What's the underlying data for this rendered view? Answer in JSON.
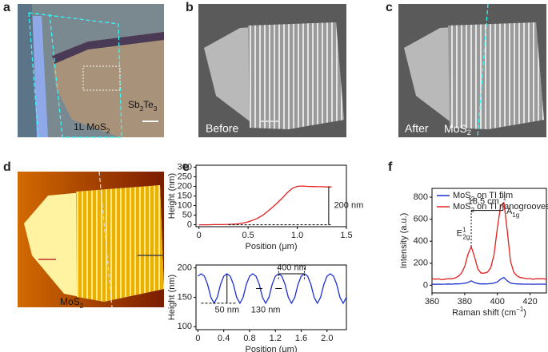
{
  "panel_labels": [
    "a",
    "b",
    "c",
    "d",
    "e",
    "f"
  ],
  "image_labels": {
    "a_material": [
      "Sb",
      "2",
      "Te",
      "3"
    ],
    "a_layer": [
      "1L MoS",
      "2"
    ],
    "b_state": "Before",
    "c_state": "After",
    "c_material": [
      "MoS",
      "2"
    ],
    "d_material": [
      "MoS",
      "2"
    ]
  },
  "chart_data": [
    {
      "type": "line",
      "xlabel": "Position (μm)",
      "ylabel": "Height (nm)",
      "xlim": [
        -0.03,
        1.5
      ],
      "ylim": [
        -10,
        310
      ],
      "xticks": [
        0,
        0.5,
        {
          "value": 1,
          "label": "1.0"
        },
        1.5
      ],
      "yticks": [
        0,
        50,
        100,
        150,
        200,
        250,
        300
      ],
      "series": [
        {
          "color": "#e0201f",
          "x": [
            0,
            0.05,
            0.1,
            0.15,
            0.2,
            0.25,
            0.3,
            0.35,
            0.4,
            0.45,
            0.5,
            0.55,
            0.6,
            0.65,
            0.7,
            0.75,
            0.8,
            0.85,
            0.9,
            0.95,
            1.0,
            1.05,
            1.1,
            1.15,
            1.2,
            1.25,
            1.3,
            1.35
          ],
          "values": [
            0,
            0,
            0,
            1,
            1,
            1,
            2,
            3,
            5,
            9,
            15,
            24,
            35,
            50,
            70,
            92,
            115,
            140,
            168,
            190,
            200,
            202,
            200,
            199,
            198,
            198,
            197,
            197
          ]
        }
      ],
      "annotations": [
        [
          "200 nm"
        ]
      ]
    },
    {
      "type": "line",
      "xlabel": "Position (μm)",
      "ylabel": "Height (nm)",
      "xlim": [
        -0.03,
        2.3
      ],
      "ylim": [
        95,
        205
      ],
      "xticks": [
        0,
        0.4,
        0.8,
        1.2,
        1.6,
        {
          "value": 2,
          "label": "2.0"
        }
      ],
      "yticks": [
        100,
        150,
        200
      ],
      "series": [
        {
          "color": "#1a2fd0",
          "x": [
            0,
            0.05,
            0.1,
            0.15,
            0.2,
            0.25,
            0.3,
            0.35,
            0.4,
            0.45,
            0.5,
            0.55,
            0.6,
            0.65,
            0.7,
            0.75,
            0.8,
            0.85,
            0.9,
            0.95,
            1.0,
            1.05,
            1.1,
            1.15,
            1.2,
            1.25,
            1.3,
            1.35,
            1.4,
            1.45,
            1.5,
            1.55,
            1.6,
            1.65,
            1.7,
            1.75,
            1.8,
            1.85,
            1.9,
            1.95,
            2.0,
            2.05,
            2.1,
            2.15,
            2.2,
            2.25,
            2.3
          ],
          "values": [
            186,
            190,
            186,
            172,
            150,
            140,
            150,
            172,
            186,
            190,
            186,
            172,
            150,
            140,
            150,
            172,
            186,
            190,
            186,
            172,
            150,
            140,
            150,
            172,
            186,
            190,
            186,
            172,
            150,
            140,
            150,
            172,
            186,
            190,
            186,
            172,
            150,
            140,
            150,
            172,
            186,
            190,
            186,
            172,
            150,
            140,
            150
          ]
        }
      ],
      "annotations": [
        [
          "400 nm"
        ],
        [
          "50 nm"
        ],
        [
          "130 nm"
        ]
      ]
    },
    {
      "type": "line",
      "xlabel": [
        "Raman shift (cm",
        "−1",
        ")"
      ],
      "ylabel": "Intensity (a.u.)",
      "xlim": [
        360,
        430
      ],
      "ylim": [
        -70,
        880
      ],
      "xticks": [
        360,
        380,
        400,
        420
      ],
      "yticks": [
        0,
        200,
        400,
        600,
        800
      ],
      "legend": "upper left",
      "series": [
        {
          "name": [
            "MoS",
            "2",
            " on TI film"
          ],
          "color": "#1a2fd0",
          "x": [
            360,
            362,
            364,
            366,
            368,
            370,
            372,
            374,
            376,
            378,
            380,
            382,
            384,
            386,
            388,
            390,
            392,
            394,
            396,
            398,
            400,
            402,
            404,
            406,
            408,
            410,
            412,
            414,
            416,
            418,
            420,
            422,
            424,
            426,
            428,
            430
          ],
          "values": [
            10,
            8,
            10,
            9,
            10,
            11,
            10,
            12,
            12,
            14,
            18,
            25,
            40,
            25,
            15,
            12,
            12,
            13,
            15,
            20,
            30,
            55,
            70,
            40,
            20,
            14,
            12,
            11,
            10,
            10,
            10,
            9,
            10,
            10,
            10,
            9
          ]
        },
        {
          "name": [
            "MoS",
            "2",
            " on TI nanogrooves"
          ],
          "color": "#e0201f",
          "x": [
            360,
            362,
            364,
            366,
            368,
            370,
            372,
            374,
            376,
            378,
            380,
            382,
            384,
            386,
            388,
            390,
            392,
            394,
            396,
            398,
            400,
            402,
            404,
            406,
            408,
            410,
            412,
            414,
            416,
            418,
            420,
            422,
            424,
            426,
            428,
            430
          ],
          "values": [
            60,
            55,
            58,
            50,
            55,
            60,
            58,
            65,
            80,
            110,
            170,
            280,
            350,
            260,
            150,
            110,
            110,
            120,
            160,
            280,
            520,
            720,
            750,
            500,
            220,
            120,
            85,
            70,
            65,
            60,
            60,
            55,
            60,
            58,
            60,
            55
          ]
        }
      ],
      "annotations": [
        [
          "18.5 cm",
          "−1"
        ],
        [
          "E",
          "1",
          "2g"
        ],
        [
          "A",
          "1g"
        ]
      ]
    }
  ]
}
